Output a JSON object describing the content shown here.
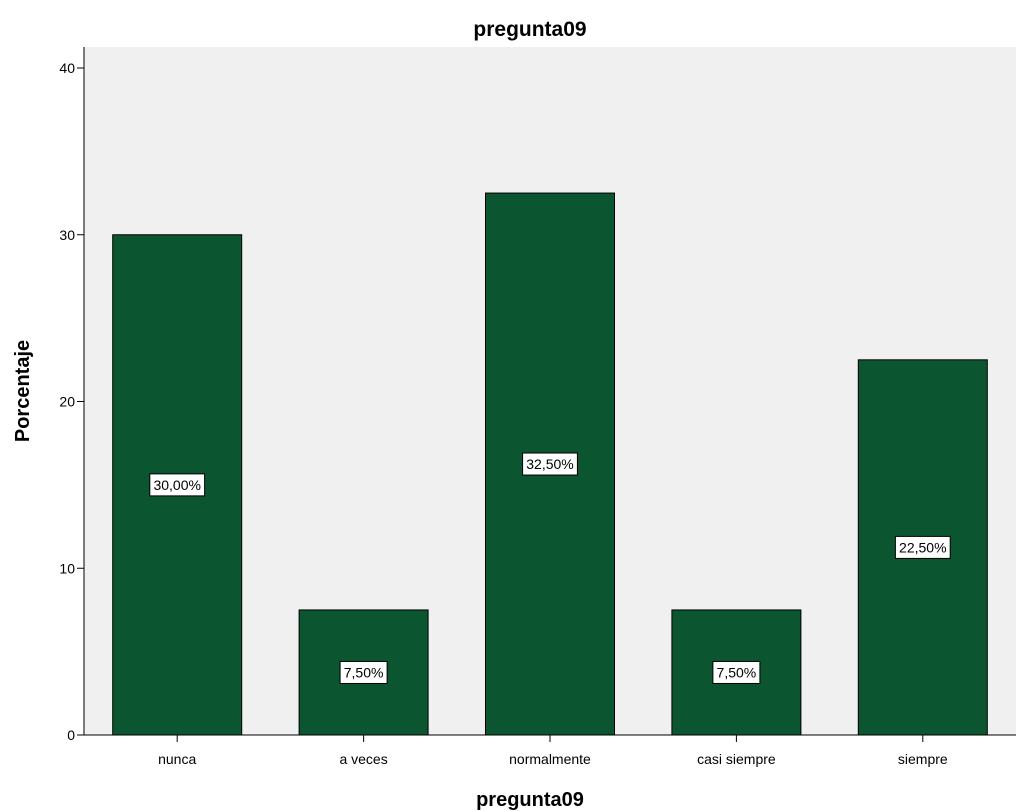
{
  "chart_data": {
    "type": "bar",
    "title": "pregunta09",
    "xlabel": "pregunta09",
    "ylabel": "Porcentaje",
    "categories": [
      "nunca",
      "a veces",
      "normalmente",
      "casi siempre",
      "siempre"
    ],
    "values": [
      30,
      7.5,
      32.5,
      7.5,
      22.5
    ],
    "data_labels": [
      "30,00%",
      "7,50%",
      "32,50%",
      "7,50%",
      "22,50%"
    ],
    "ylim": [
      0,
      40
    ],
    "yticks": [
      0,
      10,
      20,
      30,
      40
    ],
    "ytick_labels": [
      "0",
      "10",
      "20",
      "30",
      "40"
    ],
    "grid": false,
    "legend": "none"
  },
  "colors": {
    "bar_fill": "#0b5530",
    "bar_stroke": "#000000",
    "plot_background": "#f0f0f0",
    "label_box_fill": "#ffffff"
  }
}
